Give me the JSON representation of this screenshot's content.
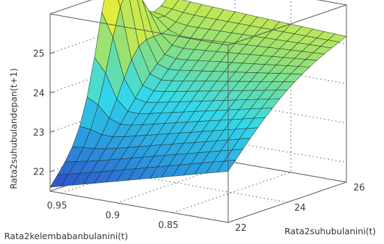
{
  "chart_data": {
    "type": "surface",
    "xlabel": "Rata2kelembabanbulanini(t)",
    "ylabel": "Rata2suhubulanini(t)",
    "zlabel": "Rata2suhubulandepan(t+1)",
    "x_ticks": [
      "0.95",
      "0.9",
      "0.85"
    ],
    "y_ticks": [
      "22",
      "24",
      "26"
    ],
    "z_ticks": [
      "22",
      "23",
      "24",
      "25"
    ],
    "xlim": [
      0.8,
      0.96
    ],
    "ylim": [
      22,
      26
    ],
    "zlim": [
      21.5,
      26
    ],
    "grid": true,
    "colormap": [
      "#2f4cc8",
      "#2a9be0",
      "#34d9ea",
      "#8fe07a",
      "#e2ec3c"
    ],
    "surface_corner_values": {
      "x0.96_y22": 21.6,
      "x0.80_y22": 22.8,
      "x0.96_y26": 25.4,
      "x0.80_y26": 25.1
    },
    "peak": {
      "x": 0.95,
      "y": 24.0,
      "z": 25.6
    }
  }
}
